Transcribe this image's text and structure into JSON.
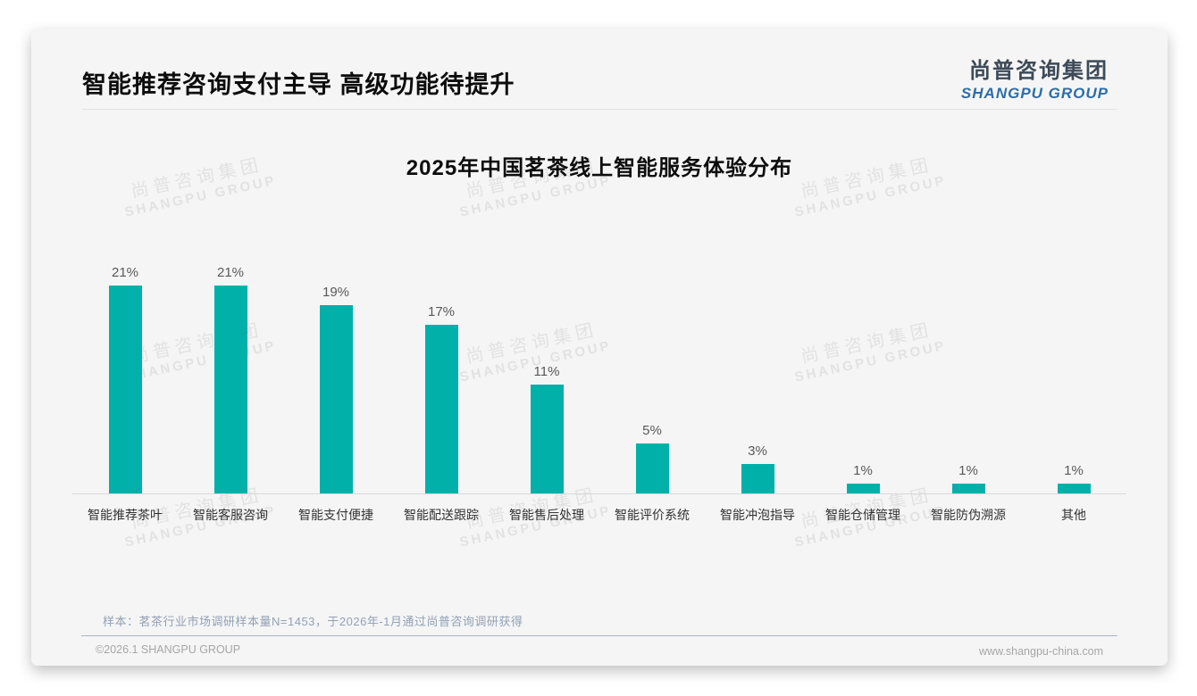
{
  "page": {
    "title": "智能推荐咨询支付主导 高级功能待提升"
  },
  "logo": {
    "name_cn": "尚普咨询集团",
    "name_en": "SHANGPU GROUP"
  },
  "watermark": {
    "line1": "尚普咨询集团",
    "line2": "SHANGPU GROUP"
  },
  "chart_data": {
    "type": "bar",
    "title": "2025年中国茗茶线上智能服务体验分布",
    "categories": [
      "智能推荐茶叶",
      "智能客服咨询",
      "智能支付便捷",
      "智能配送跟踪",
      "智能售后处理",
      "智能评价系统",
      "智能冲泡指导",
      "智能仓储管理",
      "智能防伪溯源",
      "其他"
    ],
    "values": [
      21,
      21,
      19,
      17,
      11,
      5,
      3,
      1,
      1,
      1
    ],
    "value_labels": [
      "21%",
      "21%",
      "19%",
      "17%",
      "11%",
      "5%",
      "3%",
      "1%",
      "1%",
      "1%"
    ],
    "unit": "%",
    "bar_color": "#00b0a9",
    "ylim": [
      0,
      23
    ],
    "grid": false,
    "legend": false,
    "xlabel": "",
    "ylabel": ""
  },
  "footnote": "样本：茗茶行业市场调研样本量N=1453，于2026年-1月通过尚普咨询调研获得",
  "footer": {
    "copyright": "©2026.1 SHANGPU GROUP",
    "website": "www.shangpu-china.com"
  },
  "colors": {
    "bar": "#00b0a9",
    "card_bg": "#f5f5f6",
    "logo_cn": "#3d4a57",
    "logo_en": "#2e6da6",
    "footnote": "#93a0b3"
  }
}
